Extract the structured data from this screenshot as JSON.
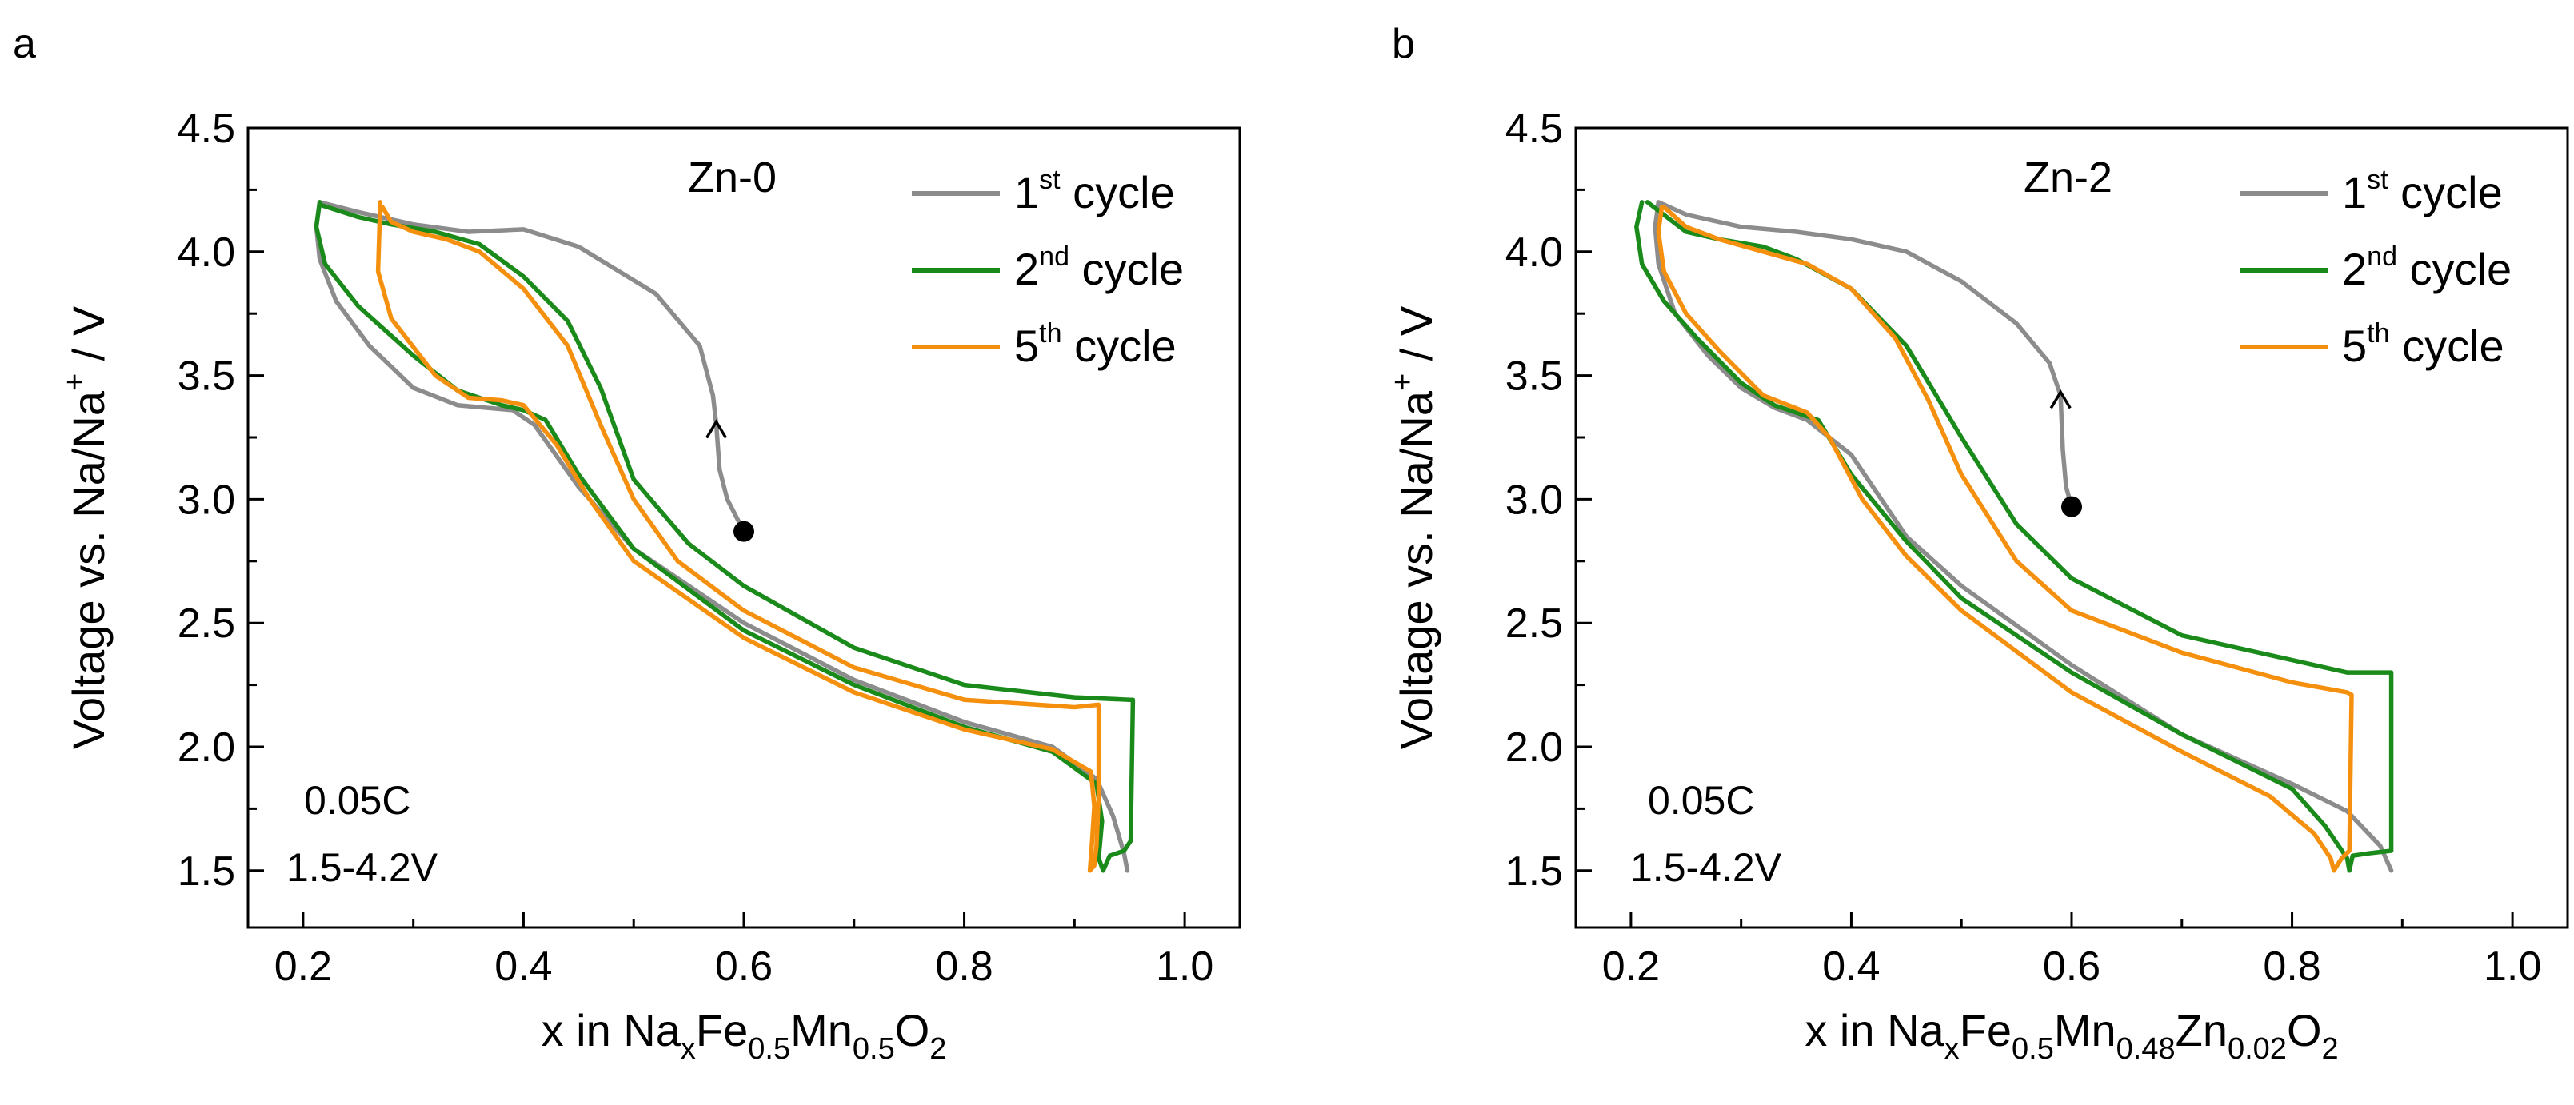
{
  "chart_data": [
    {
      "panel": "a",
      "type": "line",
      "annotation": "Zn-0",
      "xlabel": {
        "pre": "x in Na",
        "parts": [
          [
            "x",
            "sub"
          ],
          [
            "Fe",
            ""
          ],
          [
            "0.5",
            "sub"
          ],
          [
            "Mn",
            ""
          ],
          [
            "0.5",
            "sub"
          ],
          [
            "O",
            ""
          ],
          [
            "2",
            "sub"
          ]
        ]
      },
      "ylabel": {
        "text": "Voltage vs. Na/Na",
        "sup": "+",
        "post": " / V"
      },
      "xlim": [
        0.15,
        1.05
      ],
      "ylim": [
        1.27,
        4.5
      ],
      "xticks": [
        "0.2",
        "0.4",
        "0.6",
        "0.8",
        "1.0"
      ],
      "yticks": [
        "1.5",
        "2.0",
        "2.5",
        "3.0",
        "3.5",
        "4.0",
        "4.5"
      ],
      "rate": "0.05C",
      "window": "1.5-4.2V",
      "legend_position": "top-right",
      "series": [
        {
          "name": "1st cycle",
          "label_main": "1",
          "label_sup": "st",
          "label_post": " cycle",
          "color": "#8c8c8c",
          "x": [
            0.6,
            0.585,
            0.578,
            0.575,
            0.572,
            0.56,
            0.52,
            0.45,
            0.4,
            0.35,
            0.3,
            0.25,
            0.215,
            0.212,
            0.215,
            0.23,
            0.26,
            0.3,
            0.34,
            0.39,
            0.41,
            0.45,
            0.5,
            0.6,
            0.7,
            0.8,
            0.88,
            0.92,
            0.935,
            0.945,
            0.948
          ],
          "y": [
            2.87,
            3.0,
            3.12,
            3.3,
            3.42,
            3.62,
            3.83,
            4.02,
            4.09,
            4.08,
            4.11,
            4.16,
            4.2,
            4.1,
            3.97,
            3.8,
            3.62,
            3.45,
            3.38,
            3.36,
            3.3,
            3.05,
            2.8,
            2.5,
            2.27,
            2.1,
            2.0,
            1.87,
            1.72,
            1.57,
            1.5
          ]
        },
        {
          "name": "2nd cycle",
          "label_main": "2",
          "label_sup": "nd",
          "label_post": " cycle",
          "color": "#1a8a1a",
          "x": [
            0.215,
            0.212,
            0.22,
            0.25,
            0.3,
            0.34,
            0.38,
            0.4,
            0.42,
            0.45,
            0.5,
            0.6,
            0.7,
            0.8,
            0.88,
            0.92,
            0.925,
            0.922,
            0.926,
            0.932,
            0.945,
            0.951,
            0.953,
            0.95,
            0.9,
            0.8,
            0.7,
            0.6,
            0.55,
            0.5,
            0.47,
            0.44,
            0.4,
            0.36,
            0.32,
            0.28,
            0.25,
            0.215
          ],
          "y": [
            4.2,
            4.1,
            3.95,
            3.78,
            3.58,
            3.44,
            3.38,
            3.36,
            3.32,
            3.1,
            2.8,
            2.47,
            2.25,
            2.08,
            1.98,
            1.85,
            1.7,
            1.55,
            1.5,
            1.56,
            1.58,
            1.62,
            2.19,
            2.19,
            2.2,
            2.25,
            2.4,
            2.65,
            2.82,
            3.08,
            3.45,
            3.72,
            3.9,
            4.03,
            4.08,
            4.11,
            4.14,
            4.19
          ]
        },
        {
          "name": "5th cycle",
          "label_main": "5",
          "label_sup": "th",
          "label_post": " cycle",
          "color": "#f5900f",
          "x": [
            0.27,
            0.268,
            0.28,
            0.32,
            0.35,
            0.38,
            0.4,
            0.43,
            0.46,
            0.5,
            0.6,
            0.7,
            0.8,
            0.88,
            0.915,
            0.918,
            0.916,
            0.914,
            0.918,
            0.92,
            0.922,
            0.922,
            0.9,
            0.8,
            0.7,
            0.6,
            0.54,
            0.5,
            0.47,
            0.44,
            0.4,
            0.36,
            0.33,
            0.3,
            0.28,
            0.272
          ],
          "y": [
            4.2,
            3.92,
            3.73,
            3.5,
            3.41,
            3.4,
            3.38,
            3.22,
            3.0,
            2.75,
            2.44,
            2.22,
            2.07,
            1.99,
            1.9,
            1.76,
            1.62,
            1.5,
            1.52,
            1.6,
            1.8,
            2.17,
            2.16,
            2.19,
            2.32,
            2.55,
            2.75,
            3.0,
            3.3,
            3.62,
            3.85,
            4.0,
            4.05,
            4.08,
            4.12,
            4.18
          ]
        }
      ]
    },
    {
      "panel": "b",
      "type": "line",
      "annotation": "Zn-2",
      "xlabel": {
        "pre": "x in Na",
        "parts": [
          [
            "x",
            "sub"
          ],
          [
            "Fe",
            ""
          ],
          [
            "0.5",
            "sub"
          ],
          [
            "Mn",
            ""
          ],
          [
            "0.48",
            "sub"
          ],
          [
            "Zn",
            ""
          ],
          [
            "0.02",
            "sub"
          ],
          [
            "O",
            ""
          ],
          [
            "2",
            "sub"
          ]
        ]
      },
      "ylabel": {
        "text": "Voltage vs. Na/Na",
        "sup": "+",
        "post": " / V"
      },
      "xlim": [
        0.15,
        1.05
      ],
      "ylim": [
        1.27,
        4.5
      ],
      "xticks": [
        "0.2",
        "0.4",
        "0.6",
        "0.8",
        "1.0"
      ],
      "yticks": [
        "1.5",
        "2.0",
        "2.5",
        "3.0",
        "3.5",
        "4.0",
        "4.5"
      ],
      "rate": "0.05C",
      "window": "1.5-4.2V",
      "legend_position": "top-right",
      "series": [
        {
          "name": "1st cycle",
          "label_main": "1",
          "label_sup": "st",
          "label_post": " cycle",
          "color": "#8c8c8c",
          "x": [
            0.6,
            0.595,
            0.592,
            0.59,
            0.58,
            0.55,
            0.5,
            0.45,
            0.4,
            0.35,
            0.3,
            0.25,
            0.225,
            0.222,
            0.225,
            0.24,
            0.27,
            0.3,
            0.33,
            0.36,
            0.4,
            0.45,
            0.5,
            0.6,
            0.7,
            0.8,
            0.85,
            0.88,
            0.89
          ],
          "y": [
            2.97,
            3.05,
            3.2,
            3.42,
            3.55,
            3.71,
            3.88,
            4.0,
            4.05,
            4.08,
            4.1,
            4.15,
            4.2,
            4.1,
            3.95,
            3.75,
            3.58,
            3.45,
            3.37,
            3.32,
            3.18,
            2.85,
            2.65,
            2.33,
            2.05,
            1.85,
            1.74,
            1.6,
            1.5
          ]
        },
        {
          "name": "2nd cycle",
          "label_main": "2",
          "label_sup": "nd",
          "label_post": " cycle",
          "color": "#1a8a1a",
          "x": [
            0.21,
            0.205,
            0.21,
            0.23,
            0.26,
            0.3,
            0.33,
            0.37,
            0.4,
            0.45,
            0.5,
            0.6,
            0.7,
            0.8,
            0.83,
            0.85,
            0.852,
            0.855,
            0.87,
            0.89,
            0.89,
            0.85,
            0.8,
            0.7,
            0.6,
            0.55,
            0.5,
            0.45,
            0.4,
            0.35,
            0.32,
            0.28,
            0.25,
            0.215
          ],
          "y": [
            4.2,
            4.1,
            3.95,
            3.8,
            3.65,
            3.47,
            3.38,
            3.32,
            3.1,
            2.83,
            2.6,
            2.3,
            2.05,
            1.83,
            1.68,
            1.55,
            1.5,
            1.56,
            1.57,
            1.58,
            2.3,
            2.3,
            2.35,
            2.45,
            2.68,
            2.9,
            3.25,
            3.62,
            3.85,
            3.97,
            4.02,
            4.05,
            4.08,
            4.2
          ]
        },
        {
          "name": "5th cycle",
          "label_main": "5",
          "label_sup": "th",
          "label_post": " cycle",
          "color": "#f5900f",
          "x": [
            0.228,
            0.225,
            0.23,
            0.25,
            0.28,
            0.32,
            0.36,
            0.38,
            0.41,
            0.45,
            0.5,
            0.6,
            0.7,
            0.78,
            0.82,
            0.835,
            0.838,
            0.845,
            0.852,
            0.854,
            0.85,
            0.8,
            0.7,
            0.6,
            0.55,
            0.5,
            0.47,
            0.44,
            0.4,
            0.36,
            0.32,
            0.28,
            0.25,
            0.23
          ],
          "y": [
            4.18,
            4.08,
            3.92,
            3.75,
            3.6,
            3.42,
            3.35,
            3.25,
            3.0,
            2.77,
            2.55,
            2.22,
            1.98,
            1.8,
            1.65,
            1.55,
            1.5,
            1.55,
            1.58,
            2.21,
            2.22,
            2.26,
            2.38,
            2.55,
            2.75,
            3.1,
            3.4,
            3.65,
            3.85,
            3.95,
            4.0,
            4.05,
            4.1,
            4.18
          ]
        }
      ]
    }
  ]
}
